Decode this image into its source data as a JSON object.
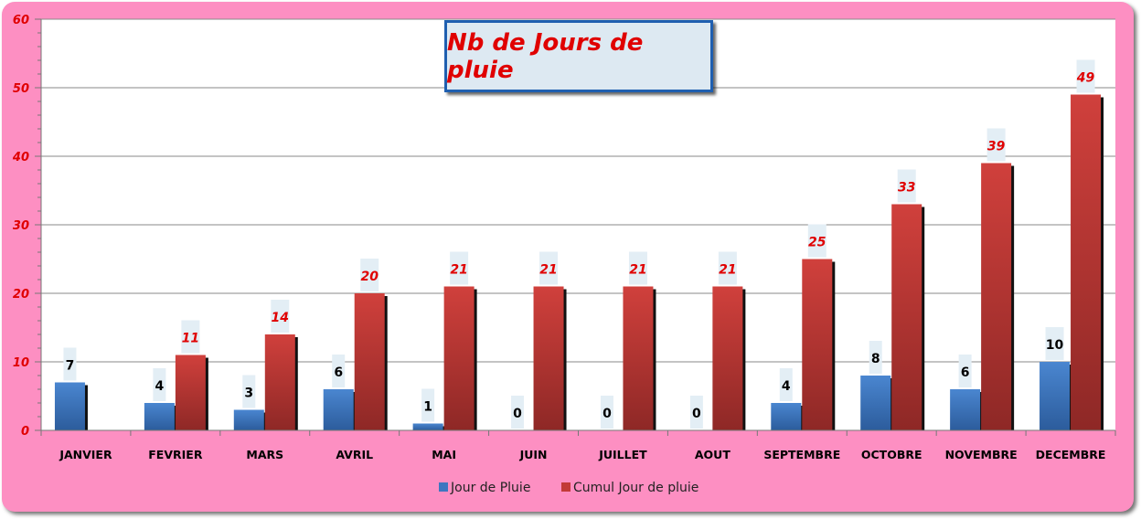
{
  "chart_data": {
    "type": "bar",
    "title": "Nb de Jours de pluie",
    "categories": [
      "JANVIER",
      "FEVRIER",
      "MARS",
      "AVRIL",
      "MAI",
      "JUIN",
      "JUILLET",
      "AOUT",
      "SEPTEMBRE",
      "OCTOBRE",
      "NOVEMBRE",
      "DECEMBRE"
    ],
    "series": [
      {
        "name": "Jour de Pluie",
        "values": [
          7,
          4,
          3,
          6,
          1,
          0,
          0,
          0,
          4,
          8,
          6,
          10
        ],
        "color": "#3e76c0"
      },
      {
        "name": "Cumul Jour de pluie",
        "values": [
          null,
          11,
          14,
          20,
          21,
          21,
          21,
          21,
          25,
          33,
          39,
          49
        ],
        "color": "#c23a37"
      }
    ],
    "ylim": [
      0,
      60
    ],
    "yticks": [
      0,
      10,
      20,
      30,
      40,
      50,
      60
    ],
    "grid": true,
    "legend_position": "bottom"
  },
  "colors": {
    "background": "#fd8fc2",
    "plot_area": "#ffffff",
    "title_text": "#e00000",
    "title_border": "#1f5fb0"
  }
}
